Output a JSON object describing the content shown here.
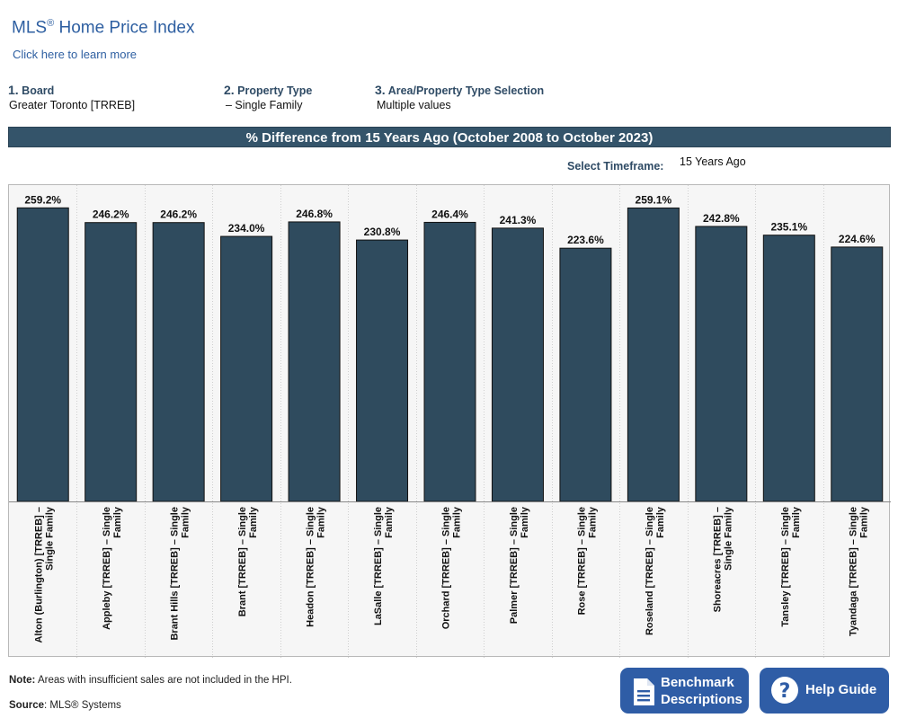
{
  "header": {
    "title_main": "MLS",
    "title_reg": "®",
    "title_rest": " Home Price Index",
    "learn_more": "Click here to learn more"
  },
  "filters": [
    {
      "num": "1.",
      "label": "Board",
      "value": "Greater Toronto [TRREB]"
    },
    {
      "num": "2.",
      "label": "Property Type",
      "value": "– Single Family"
    },
    {
      "num": "3.",
      "label": "Area/Property Type Selection",
      "value": "Multiple values"
    }
  ],
  "banner": "% Difference from 15 Years Ago (October 2008 to October 2023)",
  "timeframe": {
    "label": "Select Timeframe:",
    "value": "15 Years Ago"
  },
  "chart_data": {
    "type": "bar",
    "title": "% Difference from 15 Years Ago (October 2008 to October 2023)",
    "categories": [
      [
        "Alton (Burlington) [TRREB] –",
        "Single Family"
      ],
      [
        "Appleby [TRREB] – Single",
        "Family"
      ],
      [
        "Brant Hills [TRREB] – Single",
        "Family"
      ],
      [
        "Brant [TRREB] – Single",
        "Family"
      ],
      [
        "Headon [TRREB] – Single",
        "Family"
      ],
      [
        "LaSalle [TRREB] – Single",
        "Family"
      ],
      [
        "Orchard [TRREB] – Single",
        "Family"
      ],
      [
        "Palmer [TRREB] – Single",
        "Family"
      ],
      [
        "Rose [TRREB] – Single",
        "Family"
      ],
      [
        "Roseland [TRREB] – Single",
        "Family"
      ],
      [
        "Shoreacres [TRREB] –",
        "Single Family"
      ],
      [
        "Tansley [TRREB] – Single",
        "Family"
      ],
      [
        "Tyandaga [TRREB] – Single",
        "Family"
      ]
    ],
    "values": [
      259.2,
      246.2,
      246.2,
      234.0,
      246.8,
      230.8,
      246.4,
      241.3,
      223.6,
      259.1,
      242.8,
      235.1,
      224.6
    ],
    "value_labels": [
      "259.2%",
      "246.2%",
      "246.2%",
      "234.0%",
      "246.8%",
      "230.8%",
      "246.4%",
      "241.3%",
      "223.6%",
      "259.1%",
      "242.8%",
      "235.1%",
      "224.6%"
    ],
    "ylim": [
      0,
      265
    ],
    "bar_color": "#2f4b5e",
    "grid": false
  },
  "footer": {
    "note_label": "Note:",
    "note_text": " Areas with insufficient sales are not included in the HPI.",
    "source_label": "Source",
    "source_text": ": MLS® Systems"
  },
  "buttons": {
    "benchmark_line1": "Benchmark",
    "benchmark_line2": "Descriptions",
    "help": "Help Guide"
  },
  "colors": {
    "accent": "#2e5fa1",
    "banner": "#34546a",
    "button": "#2f5da6"
  }
}
